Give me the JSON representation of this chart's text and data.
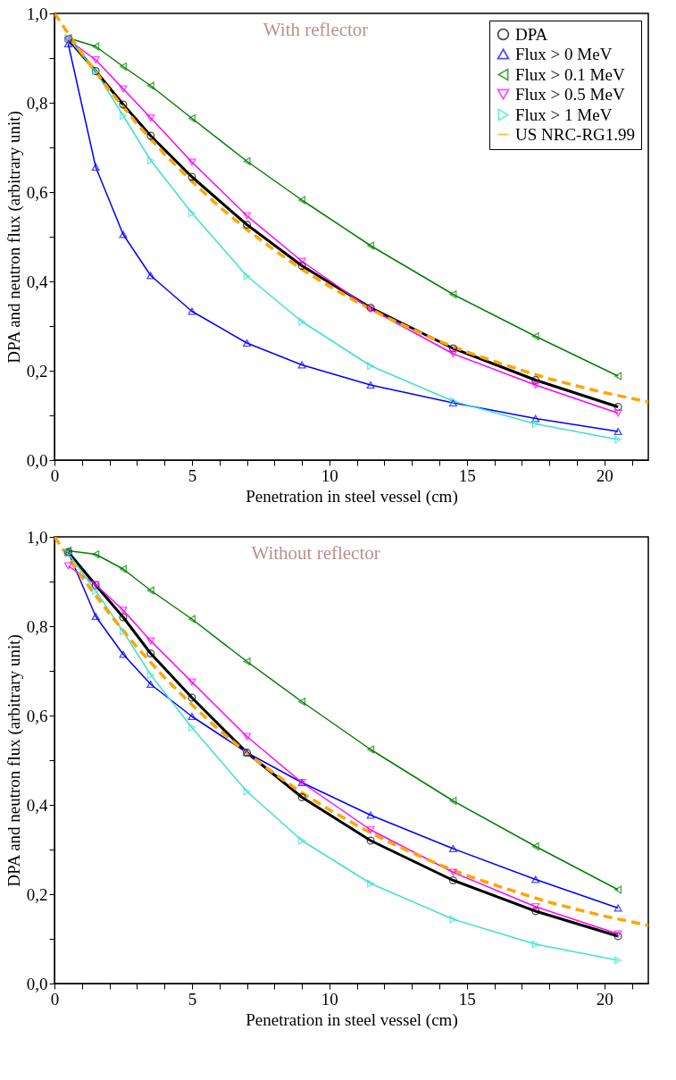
{
  "chart_data": [
    {
      "type": "line",
      "xlabel": "Penetration in steel vessel (cm)",
      "ylabel": "DPA and neutron flux (arbitrary unit)",
      "annotations": [
        "With reflector"
      ],
      "legend": "top right",
      "grid": false,
      "xlim": [
        0,
        21.6
      ],
      "ylim": [
        0,
        1
      ],
      "xticks": [
        0,
        {
          "value": 1,
          "label": null
        },
        {
          "value": 2,
          "label": null
        },
        {
          "value": 3,
          "label": null
        },
        {
          "value": 4,
          "label": null
        },
        5,
        {
          "value": 6,
          "label": null
        },
        {
          "value": 7,
          "label": null
        },
        {
          "value": 8,
          "label": null
        },
        {
          "value": 9,
          "label": null
        },
        10,
        {
          "value": 11,
          "label": null
        },
        {
          "value": 12,
          "label": null
        },
        {
          "value": 13,
          "label": null
        },
        {
          "value": 14,
          "label": null
        },
        15,
        {
          "value": 16,
          "label": null
        },
        {
          "value": 17,
          "label": null
        },
        {
          "value": 18,
          "label": null
        },
        {
          "value": 19,
          "label": null
        },
        20,
        {
          "value": 21,
          "label": null
        }
      ],
      "yticks": [
        {
          "value": 0,
          "label": "0,0"
        },
        {
          "value": 0.1,
          "label": null
        },
        {
          "value": 0.2,
          "label": "0,2"
        },
        {
          "value": 0.3,
          "label": null
        },
        {
          "value": 0.4,
          "label": "0,4"
        },
        {
          "value": 0.5,
          "label": null
        },
        {
          "value": 0.6,
          "label": "0,6"
        },
        {
          "value": 0.7,
          "label": null
        },
        {
          "value": 0.8,
          "label": "0,8"
        },
        {
          "value": 0.9,
          "label": null
        },
        {
          "value": 1,
          "label": "1,0"
        }
      ],
      "x": [
        0.5,
        1.5,
        2.5,
        3.5,
        5,
        7,
        9,
        11.5,
        14.5,
        17.5,
        20.5
      ],
      "series": [
        {
          "name": "DPA",
          "color": "#000000",
          "marker": "circle",
          "line_style": "solid",
          "values": [
            0.942,
            0.871,
            0.796,
            0.726,
            0.634,
            0.527,
            0.435,
            0.341,
            0.25,
            0.179,
            0.119
          ]
        },
        {
          "name": "Flux > 0 MeV",
          "color": "#0000ff",
          "marker": "triangle-up",
          "line_style": "solid",
          "values": [
            0.932,
            0.656,
            0.505,
            0.413,
            0.333,
            0.262,
            0.213,
            0.168,
            0.128,
            0.093,
            0.064
          ]
        },
        {
          "name": "Flux > 0.1 MeV",
          "color": "#008000",
          "marker": "triangle-left",
          "line_style": "solid",
          "values": [
            0.945,
            0.926,
            0.881,
            0.838,
            0.765,
            0.669,
            0.582,
            0.48,
            0.371,
            0.277,
            0.188
          ]
        },
        {
          "name": "Flux > 0.5 MeV",
          "color": "#ff00ff",
          "marker": "triangle-down",
          "line_style": "solid",
          "values": [
            0.941,
            0.896,
            0.831,
            0.766,
            0.667,
            0.547,
            0.445,
            0.338,
            0.238,
            0.168,
            0.105
          ]
        },
        {
          "name": "Flux > 1 MeV",
          "color": "#40e0d0",
          "marker": "triangle-right",
          "line_style": "solid",
          "values": [
            0.945,
            0.87,
            0.771,
            0.671,
            0.553,
            0.412,
            0.31,
            0.211,
            0.132,
            0.081,
            0.046
          ]
        },
        {
          "name": "US NRC-RG1.99",
          "color": "#ffa500",
          "marker": "none",
          "line_style": "dashed",
          "x": [
            0,
            1,
            2,
            3,
            4,
            5,
            6,
            7,
            8,
            9,
            10,
            11,
            12,
            13,
            14,
            15,
            16,
            17,
            18,
            19,
            20,
            21,
            21.6
          ],
          "values": [
            1.0,
            0.91,
            0.828,
            0.753,
            0.685,
            0.624,
            0.567,
            0.516,
            0.47,
            0.427,
            0.389,
            0.354,
            0.322,
            0.293,
            0.266,
            0.242,
            0.221,
            0.201,
            0.182,
            0.166,
            0.151,
            0.138,
            0.13
          ]
        }
      ]
    },
    {
      "type": "line",
      "xlabel": "Penetration in steel vessel (cm)",
      "ylabel": "DPA and neutron flux (arbitrary unit)",
      "annotations": [
        "Without reflector"
      ],
      "legend": "top right",
      "grid": false,
      "xlim": [
        0,
        21.6
      ],
      "ylim": [
        0,
        1
      ],
      "xticks": [
        0,
        {
          "value": 1,
          "label": null
        },
        {
          "value": 2,
          "label": null
        },
        {
          "value": 3,
          "label": null
        },
        {
          "value": 4,
          "label": null
        },
        5,
        {
          "value": 6,
          "label": null
        },
        {
          "value": 7,
          "label": null
        },
        {
          "value": 8,
          "label": null
        },
        {
          "value": 9,
          "label": null
        },
        10,
        {
          "value": 11,
          "label": null
        },
        {
          "value": 12,
          "label": null
        },
        {
          "value": 13,
          "label": null
        },
        {
          "value": 14,
          "label": null
        },
        15,
        {
          "value": 16,
          "label": null
        },
        {
          "value": 17,
          "label": null
        },
        {
          "value": 18,
          "label": null
        },
        {
          "value": 19,
          "label": null
        },
        20,
        {
          "value": 21,
          "label": null
        }
      ],
      "yticks": [
        {
          "value": 0,
          "label": "0,0"
        },
        {
          "value": 0.1,
          "label": null
        },
        {
          "value": 0.2,
          "label": "0,2"
        },
        {
          "value": 0.3,
          "label": null
        },
        {
          "value": 0.4,
          "label": "0,4"
        },
        {
          "value": 0.5,
          "label": null
        },
        {
          "value": 0.6,
          "label": "0,6"
        },
        {
          "value": 0.7,
          "label": null
        },
        {
          "value": 0.8,
          "label": "0,8"
        },
        {
          "value": 0.9,
          "label": null
        },
        {
          "value": 1,
          "label": "1,0"
        }
      ],
      "x": [
        0.5,
        1.5,
        2.5,
        3.5,
        5,
        7,
        9,
        11.5,
        14.5,
        17.5,
        20.5
      ],
      "series": [
        {
          "name": "DPA",
          "color": "#000000",
          "marker": "circle",
          "line_style": "solid",
          "values": [
            0.966,
            0.892,
            0.82,
            0.739,
            0.64,
            0.517,
            0.417,
            0.32,
            0.231,
            0.162,
            0.106
          ]
        },
        {
          "name": "Flux > 0 MeV",
          "color": "#0000ff",
          "marker": "triangle-up",
          "line_style": "solid",
          "values": [
            0.966,
            0.822,
            0.737,
            0.67,
            0.598,
            0.517,
            0.45,
            0.377,
            0.302,
            0.233,
            0.169
          ]
        },
        {
          "name": "Flux > 0.1 MeV",
          "color": "#008000",
          "marker": "triangle-left",
          "line_style": "solid",
          "values": [
            0.969,
            0.961,
            0.928,
            0.88,
            0.816,
            0.721,
            0.631,
            0.524,
            0.409,
            0.307,
            0.21
          ]
        },
        {
          "name": "Flux > 0.5 MeV",
          "color": "#ff00ff",
          "marker": "triangle-down",
          "line_style": "solid",
          "values": [
            0.935,
            0.893,
            0.836,
            0.767,
            0.675,
            0.553,
            0.45,
            0.344,
            0.249,
            0.172,
            0.111
          ]
        },
        {
          "name": "Flux > 1 MeV",
          "color": "#40e0d0",
          "marker": "triangle-right",
          "line_style": "solid",
          "values": [
            0.963,
            0.879,
            0.788,
            0.691,
            0.573,
            0.43,
            0.32,
            0.224,
            0.144,
            0.088,
            0.052
          ]
        },
        {
          "name": "US NRC-RG1.99",
          "color": "#ffa500",
          "marker": "none",
          "line_style": "dashed",
          "x": [
            0,
            1,
            2,
            3,
            4,
            5,
            6,
            7,
            8,
            9,
            10,
            11,
            12,
            13,
            14,
            15,
            16,
            17,
            18,
            19,
            20,
            21,
            21.6
          ],
          "values": [
            1.0,
            0.91,
            0.828,
            0.753,
            0.685,
            0.624,
            0.567,
            0.516,
            0.47,
            0.427,
            0.389,
            0.354,
            0.322,
            0.293,
            0.266,
            0.242,
            0.221,
            0.201,
            0.182,
            0.166,
            0.151,
            0.138,
            0.13
          ]
        }
      ]
    }
  ]
}
